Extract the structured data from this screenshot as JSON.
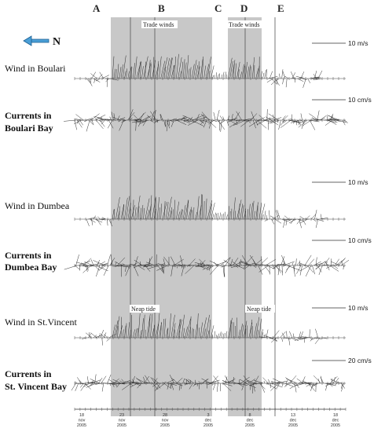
{
  "north": "N",
  "periods": [
    "A",
    "B",
    "C",
    "D",
    "E"
  ],
  "shaded_labels": {
    "first": "Trade winds",
    "second": "Trade winds",
    "neap1": "Neap tide",
    "neap2": "Neap tide"
  },
  "rows": [
    {
      "label": [
        "Wind in Boulari"
      ],
      "bold": false,
      "scale": "10 m/s"
    },
    {
      "label": [
        "Currents in",
        "Boulari Bay"
      ],
      "bold": true,
      "scale": "10 cm/s"
    },
    {
      "label": [
        "Wind in Dumbea"
      ],
      "bold": false,
      "scale": "10 m/s"
    },
    {
      "label": [
        "Currents in",
        "Dumbea Bay"
      ],
      "bold": true,
      "scale": "10 cm/s"
    },
    {
      "label": [
        "Wind in St.Vincent"
      ],
      "bold": false,
      "scale": "10 m/s"
    },
    {
      "label": [
        "Currents in",
        "St. Vincent Bay"
      ],
      "bold": true,
      "scale": "20 cm/s"
    }
  ],
  "date_ticks": [
    {
      "day": "18",
      "month": "nov",
      "year": "2005"
    },
    {
      "day": "23",
      "month": "nov",
      "year": "2005"
    },
    {
      "day": "28",
      "month": "nov",
      "year": "2005"
    },
    {
      "day": "3",
      "month": "dec",
      "year": "2005"
    },
    {
      "day": "8",
      "month": "dec",
      "year": "2005"
    },
    {
      "day": "13",
      "month": "dec",
      "year": "2005"
    },
    {
      "day": "18",
      "month": "dec",
      "year": "2005"
    }
  ]
}
